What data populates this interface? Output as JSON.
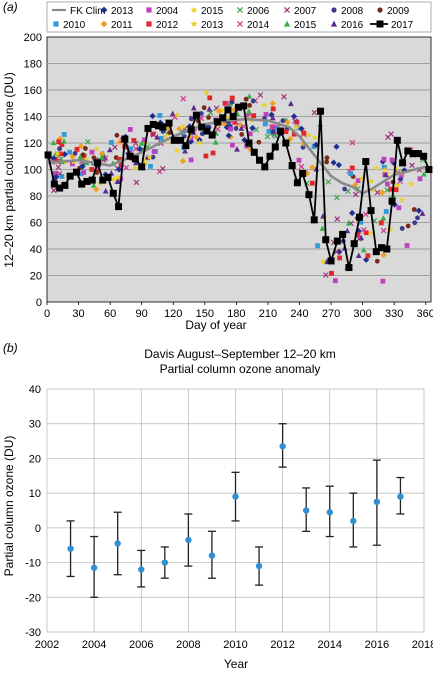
{
  "panel_a": {
    "label": "(a)",
    "ylabel": "12–20 km partial column ozone (DU)",
    "xlabel": "Day of year"
  },
  "panel_b": {
    "label": "(b)",
    "title_line1": "Davis August–September 12–20 km",
    "title_line2": "Partial column ozone anomaly",
    "ylabel": "Partial column ozone (DU)",
    "xlabel": "Year"
  },
  "chart_data": [
    {
      "type": "scatter",
      "panel": "a",
      "xlabel": "Day of year",
      "ylabel": "12–20 km partial column ozone (DU)",
      "xlim": [
        0,
        365
      ],
      "ylim": [
        0,
        200
      ],
      "x_ticks": [
        0,
        30,
        60,
        90,
        120,
        150,
        180,
        210,
        240,
        270,
        300,
        330,
        360
      ],
      "y_ticks": [
        0,
        20,
        40,
        60,
        80,
        100,
        120,
        140,
        160,
        180,
        200
      ],
      "grid": true,
      "legend_position": "top",
      "legend": [
        {
          "name": "FK Clim",
          "marker": "line",
          "color": "#8a8a8a"
        },
        {
          "name": "2013",
          "marker": "diamond",
          "color": "#1f2f8f"
        },
        {
          "name": "2004",
          "marker": "square",
          "color": "#c23fbf"
        },
        {
          "name": "2015",
          "marker": "star",
          "color": "#f2d21e"
        },
        {
          "name": "2006",
          "marker": "x",
          "color": "#3aa84a"
        },
        {
          "name": "2007",
          "marker": "x",
          "color": "#a0307a"
        },
        {
          "name": "2008",
          "marker": "circle",
          "color": "#3a3a8c"
        },
        {
          "name": "2009",
          "marker": "circle",
          "color": "#7a2a14"
        },
        {
          "name": "2010",
          "marker": "square",
          "color": "#2f9bd8"
        },
        {
          "name": "2011",
          "marker": "diamond",
          "color": "#f0a020"
        },
        {
          "name": "2012",
          "marker": "square",
          "color": "#e0262a"
        },
        {
          "name": "2013",
          "marker": "star",
          "color": "#e8d020"
        },
        {
          "name": "2014",
          "marker": "x",
          "color": "#d2368a"
        },
        {
          "name": "2015",
          "marker": "triangle",
          "color": "#37b04a"
        },
        {
          "name": "2016",
          "marker": "triangle",
          "color": "#5b2c8f"
        },
        {
          "name": "2017",
          "marker": "square-line",
          "color": "#000000"
        }
      ],
      "series": [
        {
          "name": "FK Clim",
          "x": [
            0,
            30,
            60,
            90,
            120,
            150,
            170,
            190,
            210,
            230,
            240,
            250,
            260,
            270,
            280,
            290,
            300,
            310,
            330,
            360
          ],
          "y": [
            105,
            107,
            103,
            113,
            125,
            134,
            137,
            138,
            137,
            132,
            125,
            115,
            105,
            95,
            90,
            87,
            82,
            86,
            96,
            102
          ]
        },
        {
          "name": "2017",
          "x": [
            1,
            7,
            12,
            17,
            22,
            28,
            33,
            38,
            43,
            48,
            53,
            58,
            63,
            68,
            74,
            79,
            84,
            90,
            96,
            101,
            106,
            110,
            116,
            121,
            127,
            132,
            137,
            142,
            147,
            152,
            157,
            162,
            167,
            172,
            177,
            182,
            187,
            192,
            197,
            202,
            207,
            212,
            217,
            222,
            227,
            233,
            238,
            243,
            249,
            254,
            260,
            265,
            270,
            276,
            281,
            287,
            292,
            297,
            303,
            308,
            313,
            318,
            323,
            328,
            333,
            338,
            343,
            348,
            353,
            358,
            363
          ],
          "y": [
            111,
            89,
            86,
            88,
            95,
            98,
            89,
            91,
            92,
            105,
            92,
            94,
            82,
            72,
            123,
            110,
            108,
            102,
            131,
            134,
            133,
            132,
            135,
            122,
            122,
            118,
            130,
            141,
            132,
            129,
            126,
            136,
            139,
            145,
            140,
            147,
            148,
            120,
            113,
            107,
            102,
            110,
            117,
            129,
            120,
            103,
            90,
            97,
            81,
            62,
            144,
            47,
            31,
            46,
            51,
            26,
            44,
            64,
            106,
            69,
            38,
            41,
            40,
            76,
            122,
            105,
            114,
            112,
            112,
            110,
            100
          ]
        }
      ]
    },
    {
      "type": "scatter",
      "panel": "b",
      "title": "Davis August–September 12–20 km Partial column ozone anomaly",
      "xlabel": "Year",
      "ylabel": "Partial column ozone (DU)",
      "xlim": [
        2002,
        2018
      ],
      "ylim": [
        -30,
        40
      ],
      "x_ticks": [
        2002,
        2004,
        2006,
        2008,
        2010,
        2012,
        2014,
        2016,
        2018
      ],
      "y_ticks": [
        -30,
        -20,
        -10,
        0,
        10,
        20,
        30,
        40
      ],
      "grid": true,
      "marker_color": "#2f8fcf",
      "series": [
        {
          "name": "",
          "x": [
            2003,
            2004,
            2005,
            2006,
            2007,
            2008,
            2009,
            2010,
            2011,
            2012,
            2013,
            2014,
            2015,
            2016,
            2017
          ],
          "y": [
            -6,
            -11.5,
            -4.5,
            -12,
            -10,
            -3.5,
            -8,
            9,
            -11,
            23.5,
            5,
            4.5,
            2,
            7.5,
            9
          ],
          "err_low": [
            -14,
            -20,
            -13.5,
            -17,
            -14.5,
            -11,
            -14.5,
            2,
            -16.5,
            17.5,
            -1,
            -2.5,
            -5.5,
            -5,
            4
          ],
          "err_high": [
            2,
            -2.5,
            4.5,
            -6.5,
            -5.5,
            4,
            -1,
            16,
            -5.5,
            30,
            11.5,
            12,
            10,
            19.5,
            14.5
          ]
        }
      ]
    }
  ]
}
